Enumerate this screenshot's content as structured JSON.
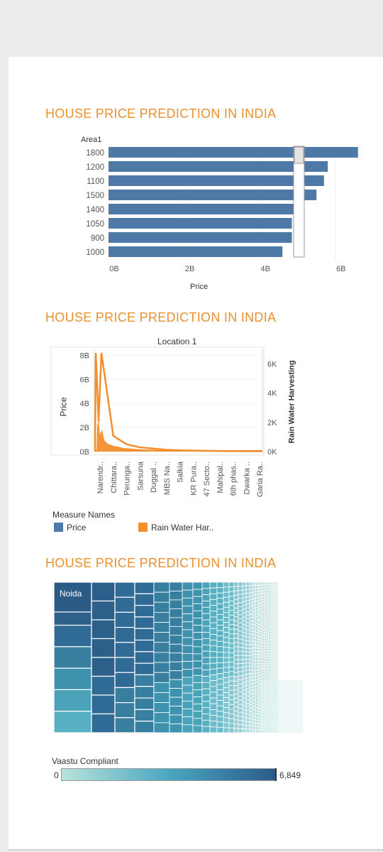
{
  "colors": {
    "title": "#e8912e",
    "price": "#4e79a7",
    "rain": "#f28e2b",
    "vaastu_low": "#b8e2db",
    "vaastu_high": "#2c5a8a"
  },
  "bar_chart": {
    "title": "HOUSE PRICE PREDICTION IN INDIA",
    "ylabel": "Area1",
    "xlabel": "Price"
  },
  "line_chart": {
    "title": "HOUSE PRICE PREDICTION IN INDIA",
    "header": "Location 1",
    "ylabel_left": "Price",
    "ylabel_right": "Rain Water Harvesting"
  },
  "legend": {
    "title": "Measure Names",
    "items": [
      {
        "label": "Price",
        "color": "#4e79a7"
      },
      {
        "label": "Rain Water Har..",
        "color": "#f28e2b"
      }
    ]
  },
  "treemap": {
    "title": "HOUSE PRICE PREDICTION IN INDIA",
    "top_label": "Noida"
  },
  "color_legend": {
    "title": "Vaastu Compliant",
    "min_label": "0",
    "max_label": "6,849"
  },
  "chart_data": [
    {
      "type": "bar",
      "title": "HOUSE PRICE PREDICTION IN INDIA",
      "ylabel": "Area1",
      "xlabel": "Price",
      "categories": [
        "1800",
        "1200",
        "1100",
        "1500",
        "1400",
        "1050",
        "900",
        "1000"
      ],
      "values": [
        6.6,
        5.8,
        5.7,
        5.5,
        4.9,
        4.85,
        4.85,
        4.6
      ],
      "value_unit": "B",
      "xticks": [
        "0B",
        "2B",
        "4B",
        "6B"
      ],
      "xlim": [
        0,
        7
      ],
      "grid": true
    },
    {
      "type": "line",
      "title": "HOUSE PRICE PREDICTION IN INDIA",
      "header": "Location 1",
      "x": [
        "Narendr..",
        "Chittara..",
        "Perunga..",
        "Sarsuna",
        "Duggal ..",
        "MBS Na..",
        "Salkia",
        "KR Pura..",
        "47 Secto..",
        "Mahipal..",
        "6th phas..",
        "Dwarka ..",
        "Garia Ra.."
      ],
      "series": [
        {
          "name": "Price",
          "axis": "left",
          "values": [
            8.2,
            1.3,
            0.6,
            0.35,
            0.25,
            0.15,
            0.1,
            0.08,
            0.06,
            0.05,
            0.04,
            0.03,
            0.03
          ]
        },
        {
          "name": "Rain Water Harvesting",
          "axis": "right",
          "values": [
            0,
            0,
            0,
            0,
            0,
            0,
            0,
            0,
            0,
            0,
            0,
            0,
            0
          ]
        }
      ],
      "yticks_left": [
        "0B",
        "2B",
        "4B",
        "6B",
        "8B"
      ],
      "ylim_left": [
        0,
        8.5
      ],
      "yticks_right": [
        "0K",
        "2K",
        "4K",
        "6K"
      ],
      "ylim_right": [
        0,
        7
      ],
      "ylabel_left": "Price",
      "ylabel_right": "Rain Water Harvesting",
      "legend": "bottom"
    },
    {
      "type": "heatmap",
      "subtype": "treemap",
      "title": "HOUSE PRICE PREDICTION IN INDIA",
      "labels": [
        "Noida"
      ],
      "color_measure": "Vaastu Compliant",
      "color_range": [
        0,
        6849
      ]
    }
  ]
}
